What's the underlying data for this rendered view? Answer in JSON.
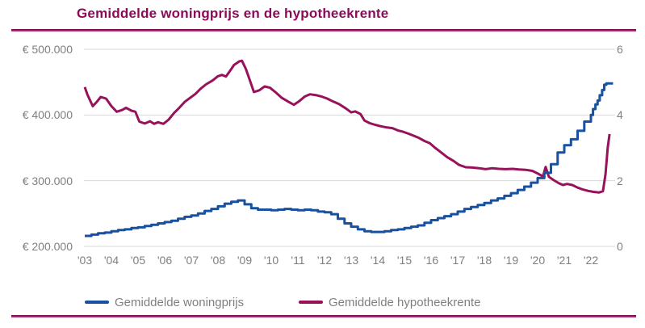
{
  "title": "Gemiddelde woningprijs en de hypotheekrente",
  "colors": {
    "accent": "#8B0A5A",
    "price_line": "#17519F",
    "rate_line": "#98125B",
    "gridline": "#D8D8D8",
    "axis_text": "#7F7F7F"
  },
  "chart_data": {
    "type": "line",
    "title": "Gemiddelde woningprijs en de hypotheekrente",
    "grid": "horizontal",
    "legend_position": "bottom",
    "x_axis": {
      "range": [
        2003,
        2023
      ],
      "ticks": [
        {
          "label": "'03",
          "year": 2003
        },
        {
          "label": "'04",
          "year": 2004
        },
        {
          "label": "'05",
          "year": 2005
        },
        {
          "label": "'06",
          "year": 2006
        },
        {
          "label": "'07",
          "year": 2007
        },
        {
          "label": "'08",
          "year": 2008
        },
        {
          "label": "'09",
          "year": 2009
        },
        {
          "label": "'10",
          "year": 2010
        },
        {
          "label": "'11",
          "year": 2011
        },
        {
          "label": "'12",
          "year": 2012
        },
        {
          "label": "'13",
          "year": 2013
        },
        {
          "label": "'14",
          "year": 2014
        },
        {
          "label": "'15",
          "year": 2015
        },
        {
          "label": "'16",
          "year": 2016
        },
        {
          "label": "'17",
          "year": 2017
        },
        {
          "label": "'18",
          "year": 2018
        },
        {
          "label": "'19",
          "year": 2019
        },
        {
          "label": "'20",
          "year": 2020
        },
        {
          "label": "'21",
          "year": 2021
        },
        {
          "label": "'22",
          "year": 2022
        }
      ]
    },
    "y_axis_left": {
      "unit": "EUR",
      "range": [
        200000,
        500000
      ],
      "ticks": [
        {
          "label": "€ 500.000",
          "value": 500000
        },
        {
          "label": "€ 400.000",
          "value": 400000
        },
        {
          "label": "€ 300.000",
          "value": 300000
        },
        {
          "label": "€ 200.000",
          "value": 200000
        }
      ]
    },
    "y_axis_right": {
      "unit": "%",
      "range": [
        0,
        6
      ],
      "ticks": [
        {
          "label": "6",
          "value": 6
        },
        {
          "label": "4",
          "value": 4
        },
        {
          "label": "2",
          "value": 2
        },
        {
          "label": "0",
          "value": 0
        }
      ]
    },
    "series": [
      {
        "name": "Gemiddelde woningprijs",
        "axis": "left",
        "color": "#17519F",
        "interpolation": "step-after",
        "points": [
          [
            2003.0,
            216000
          ],
          [
            2003.25,
            218000
          ],
          [
            2003.5,
            220000
          ],
          [
            2003.75,
            221000
          ],
          [
            2004.0,
            223000
          ],
          [
            2004.25,
            225000
          ],
          [
            2004.5,
            226000
          ],
          [
            2004.75,
            228000
          ],
          [
            2005.0,
            229000
          ],
          [
            2005.25,
            231000
          ],
          [
            2005.5,
            233000
          ],
          [
            2005.75,
            235000
          ],
          [
            2006.0,
            237000
          ],
          [
            2006.25,
            239000
          ],
          [
            2006.5,
            242000
          ],
          [
            2006.75,
            245000
          ],
          [
            2007.0,
            247000
          ],
          [
            2007.25,
            250000
          ],
          [
            2007.5,
            254000
          ],
          [
            2007.75,
            257000
          ],
          [
            2008.0,
            261000
          ],
          [
            2008.25,
            265000
          ],
          [
            2008.5,
            268000
          ],
          [
            2008.75,
            270000
          ],
          [
            2009.0,
            264000
          ],
          [
            2009.25,
            258000
          ],
          [
            2009.5,
            256000
          ],
          [
            2009.75,
            256000
          ],
          [
            2010.0,
            255000
          ],
          [
            2010.25,
            256000
          ],
          [
            2010.5,
            257000
          ],
          [
            2010.75,
            256000
          ],
          [
            2011.0,
            255000
          ],
          [
            2011.25,
            256000
          ],
          [
            2011.5,
            255000
          ],
          [
            2011.75,
            253000
          ],
          [
            2012.0,
            252000
          ],
          [
            2012.25,
            249000
          ],
          [
            2012.5,
            242000
          ],
          [
            2012.75,
            235000
          ],
          [
            2013.0,
            230000
          ],
          [
            2013.25,
            226000
          ],
          [
            2013.5,
            223000
          ],
          [
            2013.75,
            222000
          ],
          [
            2014.0,
            222000
          ],
          [
            2014.25,
            223000
          ],
          [
            2014.5,
            225000
          ],
          [
            2014.75,
            226000
          ],
          [
            2015.0,
            228000
          ],
          [
            2015.25,
            230000
          ],
          [
            2015.5,
            232000
          ],
          [
            2015.75,
            236000
          ],
          [
            2016.0,
            240000
          ],
          [
            2016.25,
            243000
          ],
          [
            2016.5,
            246000
          ],
          [
            2016.75,
            249000
          ],
          [
            2017.0,
            253000
          ],
          [
            2017.25,
            257000
          ],
          [
            2017.5,
            260000
          ],
          [
            2017.75,
            263000
          ],
          [
            2018.0,
            266000
          ],
          [
            2018.25,
            270000
          ],
          [
            2018.5,
            273000
          ],
          [
            2018.75,
            277000
          ],
          [
            2019.0,
            281000
          ],
          [
            2019.25,
            286000
          ],
          [
            2019.5,
            291000
          ],
          [
            2019.75,
            297000
          ],
          [
            2020.0,
            304000
          ],
          [
            2020.25,
            312000
          ],
          [
            2020.5,
            325000
          ],
          [
            2020.75,
            343000
          ],
          [
            2021.0,
            354000
          ],
          [
            2021.25,
            363000
          ],
          [
            2021.5,
            376000
          ],
          [
            2021.75,
            390000
          ],
          [
            2022.0,
            400000
          ],
          [
            2022.08,
            409000
          ],
          [
            2022.17,
            416000
          ],
          [
            2022.25,
            422000
          ],
          [
            2022.33,
            430000
          ],
          [
            2022.42,
            438000
          ],
          [
            2022.5,
            446000
          ],
          [
            2022.58,
            448000
          ],
          [
            2022.83,
            448000
          ]
        ]
      },
      {
        "name": "Gemiddelde hypotheekrente",
        "axis": "right",
        "color": "#98125B",
        "interpolation": "linear",
        "points": [
          [
            2003.0,
            4.85
          ],
          [
            2003.1,
            4.62
          ],
          [
            2003.3,
            4.27
          ],
          [
            2003.45,
            4.4
          ],
          [
            2003.6,
            4.55
          ],
          [
            2003.8,
            4.5
          ],
          [
            2004.0,
            4.27
          ],
          [
            2004.2,
            4.1
          ],
          [
            2004.4,
            4.15
          ],
          [
            2004.55,
            4.22
          ],
          [
            2004.75,
            4.13
          ],
          [
            2004.9,
            4.1
          ],
          [
            2005.05,
            3.8
          ],
          [
            2005.25,
            3.74
          ],
          [
            2005.45,
            3.81
          ],
          [
            2005.6,
            3.73
          ],
          [
            2005.75,
            3.78
          ],
          [
            2005.95,
            3.73
          ],
          [
            2006.15,
            3.86
          ],
          [
            2006.35,
            4.06
          ],
          [
            2006.55,
            4.22
          ],
          [
            2006.75,
            4.4
          ],
          [
            2006.95,
            4.52
          ],
          [
            2007.15,
            4.64
          ],
          [
            2007.35,
            4.8
          ],
          [
            2007.55,
            4.93
          ],
          [
            2007.8,
            5.05
          ],
          [
            2008.0,
            5.18
          ],
          [
            2008.15,
            5.22
          ],
          [
            2008.3,
            5.17
          ],
          [
            2008.45,
            5.34
          ],
          [
            2008.6,
            5.52
          ],
          [
            2008.8,
            5.63
          ],
          [
            2008.9,
            5.65
          ],
          [
            2009.05,
            5.4
          ],
          [
            2009.2,
            5.05
          ],
          [
            2009.35,
            4.7
          ],
          [
            2009.55,
            4.75
          ],
          [
            2009.75,
            4.87
          ],
          [
            2009.95,
            4.83
          ],
          [
            2010.15,
            4.7
          ],
          [
            2010.4,
            4.52
          ],
          [
            2010.65,
            4.4
          ],
          [
            2010.85,
            4.31
          ],
          [
            2011.05,
            4.42
          ],
          [
            2011.25,
            4.56
          ],
          [
            2011.45,
            4.63
          ],
          [
            2011.7,
            4.6
          ],
          [
            2011.9,
            4.56
          ],
          [
            2012.1,
            4.5
          ],
          [
            2012.3,
            4.42
          ],
          [
            2012.55,
            4.33
          ],
          [
            2012.8,
            4.2
          ],
          [
            2013.0,
            4.08
          ],
          [
            2013.15,
            4.11
          ],
          [
            2013.35,
            4.03
          ],
          [
            2013.5,
            3.83
          ],
          [
            2013.7,
            3.75
          ],
          [
            2013.9,
            3.7
          ],
          [
            2014.1,
            3.66
          ],
          [
            2014.35,
            3.62
          ],
          [
            2014.55,
            3.6
          ],
          [
            2014.75,
            3.53
          ],
          [
            2014.95,
            3.49
          ],
          [
            2015.15,
            3.43
          ],
          [
            2015.35,
            3.37
          ],
          [
            2015.55,
            3.3
          ],
          [
            2015.75,
            3.21
          ],
          [
            2015.95,
            3.14
          ],
          [
            2016.15,
            3.0
          ],
          [
            2016.35,
            2.88
          ],
          [
            2016.6,
            2.72
          ],
          [
            2016.85,
            2.6
          ],
          [
            2017.05,
            2.48
          ],
          [
            2017.3,
            2.41
          ],
          [
            2017.55,
            2.4
          ],
          [
            2017.8,
            2.38
          ],
          [
            2018.05,
            2.35
          ],
          [
            2018.3,
            2.38
          ],
          [
            2018.55,
            2.36
          ],
          [
            2018.8,
            2.35
          ],
          [
            2019.05,
            2.36
          ],
          [
            2019.3,
            2.34
          ],
          [
            2019.55,
            2.33
          ],
          [
            2019.8,
            2.3
          ],
          [
            2020.0,
            2.22
          ],
          [
            2020.2,
            2.13
          ],
          [
            2020.3,
            2.42
          ],
          [
            2020.42,
            2.12
          ],
          [
            2020.6,
            2.02
          ],
          [
            2020.8,
            1.92
          ],
          [
            2020.95,
            1.87
          ],
          [
            2021.1,
            1.9
          ],
          [
            2021.3,
            1.87
          ],
          [
            2021.5,
            1.79
          ],
          [
            2021.7,
            1.73
          ],
          [
            2021.9,
            1.69
          ],
          [
            2022.1,
            1.66
          ],
          [
            2022.3,
            1.64
          ],
          [
            2022.45,
            1.68
          ],
          [
            2022.55,
            2.2
          ],
          [
            2022.63,
            3.0
          ],
          [
            2022.7,
            3.42
          ]
        ]
      }
    ]
  }
}
